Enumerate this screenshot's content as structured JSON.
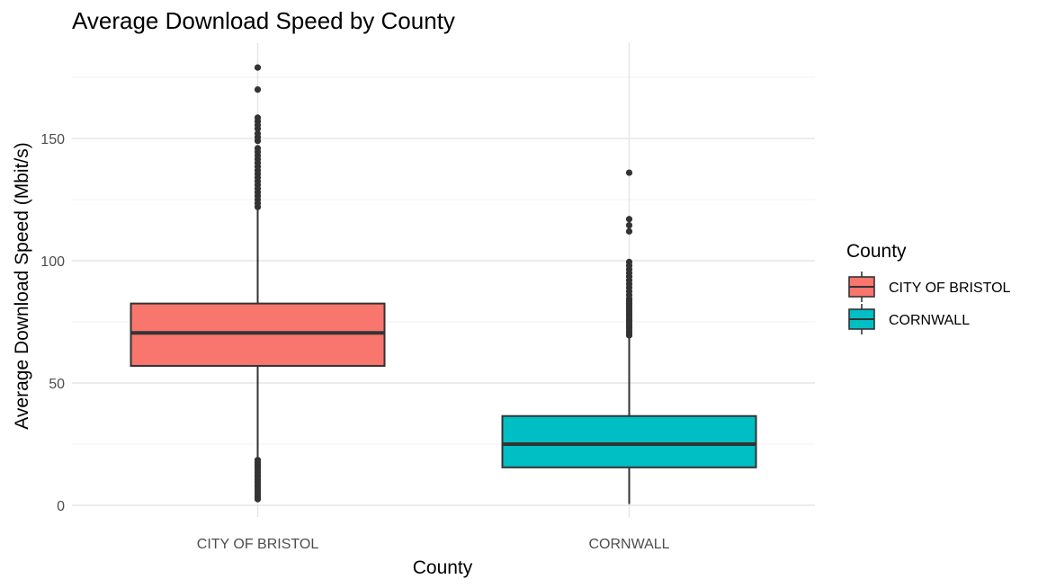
{
  "chart_data": {
    "type": "boxplot",
    "title": "Average Download Speed by County",
    "xlabel": "County",
    "ylabel": "Average Download Speed (Mbit/s)",
    "ylim": [
      -7,
      182
    ],
    "yticks": [
      0,
      50,
      100,
      150
    ],
    "grid": true,
    "legend": {
      "title": "County",
      "placement": "right"
    },
    "categories": [
      "CITY OF BRISTOL",
      "CORNWALL"
    ],
    "series": [
      {
        "name": "CITY OF BRISTOL",
        "color": "#F8766D",
        "whisker_low": 19,
        "q1": 57,
        "median": 70.5,
        "q3": 82.5,
        "whisker_high": 121,
        "outliers": [
          2.5,
          3.5,
          4.5,
          5.5,
          6.5,
          7.5,
          8.5,
          9.5,
          10.5,
          11.5,
          12.5,
          13.5,
          14.5,
          15.5,
          16.5,
          17.5,
          18.5,
          122,
          123.5,
          125,
          126.5,
          128,
          129.5,
          131,
          132.5,
          134,
          135.5,
          137,
          138.5,
          140,
          141.5,
          143,
          144.5,
          146,
          149,
          150.5,
          152,
          154,
          155.5,
          157,
          158.5,
          170,
          179
        ]
      },
      {
        "name": "CORNWALL",
        "color": "#00BFC4",
        "whisker_low": 0.5,
        "q1": 15.5,
        "median": 25,
        "q3": 36.5,
        "whisker_high": 69,
        "outliers": [
          69.5,
          70.5,
          71.5,
          72.5,
          73.5,
          74.5,
          75.5,
          76.5,
          77.5,
          78.5,
          79.5,
          80.5,
          81.5,
          82.5,
          83.5,
          84.5,
          86,
          87.5,
          89,
          90.5,
          92,
          93.5,
          95,
          96.5,
          98,
          99.5,
          112,
          114.5,
          117,
          136
        ]
      }
    ]
  }
}
